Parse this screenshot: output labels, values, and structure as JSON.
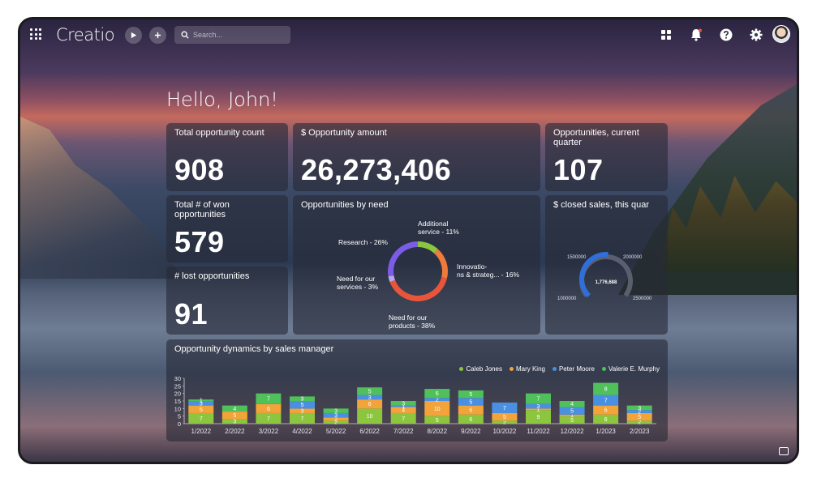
{
  "header": {
    "logo": "Creatio",
    "search_placeholder": "Search...",
    "play_icon": "play-icon",
    "add_icon": "plus-icon"
  },
  "greeting": "Hello, John!",
  "widgets": {
    "total_opportunity_count": {
      "title": "Total opportunity count",
      "value": "908"
    },
    "opportunity_amount": {
      "title": "$ Opportunity amount",
      "value": "26,273,406"
    },
    "opportunities_current_quarter": {
      "title": "Opportunities, current quarter",
      "value": "107"
    },
    "won_opportunities": {
      "title": "Total # of won opportunities",
      "value": "579"
    },
    "lost_opportunities": {
      "title": "# lost opportunities",
      "value": "91"
    },
    "opportunities_by_need": {
      "title": "Opportunities by need"
    },
    "closed_sales": {
      "title": "$ closed sales, this quar"
    },
    "opportunity_dynamics": {
      "title": "Opportunity dynamics by sales manager"
    }
  },
  "colors": {
    "caleb": "#8cc63f",
    "mary": "#f2a33a",
    "peter": "#4a90e2",
    "valerie": "#4fc05a",
    "donut_purple": "#7b5ce6",
    "donut_red": "#e8553a",
    "donut_orange": "#ef7b3a",
    "gauge_blue": "#2f6fdb"
  },
  "chart_data": [
    {
      "type": "pie",
      "title": "Opportunities by need",
      "categories": [
        "Additional service - 11%",
        "Innovations & strateg... - 16%",
        "Need for our products - 38%",
        "Need for our services - 3%",
        "Research - 26%"
      ],
      "label_text": {
        "additional": [
          "Additional",
          "service - 11%"
        ],
        "innovations": [
          "Innova­tio-",
          "ns & strateg... - 16%"
        ],
        "products": [
          "Need for our",
          "products - 38%"
        ],
        "services": [
          "Need for our",
          "services - 3%"
        ],
        "research": [
          "Research - 26%"
        ]
      },
      "values": [
        11,
        16,
        38,
        3,
        26
      ]
    },
    {
      "type": "gauge",
      "title": "$ closed sales, this quar",
      "value": 1776688,
      "value_label": "1,776,688",
      "ticks": [
        "1000000",
        "1500000",
        "2000000",
        "2500000"
      ],
      "range": [
        1000000,
        2500000
      ]
    },
    {
      "type": "bar",
      "stacked": true,
      "title": "Opportunity dynamics by sales manager",
      "categories": [
        "1/2022",
        "2/2022",
        "3/2022",
        "4/2022",
        "5/2022",
        "6/2022",
        "7/2022",
        "8/2022",
        "9/2022",
        "10/2022",
        "11/2022",
        "12/2022",
        "1/2023",
        "2/2023"
      ],
      "ylim": [
        0,
        30
      ],
      "yticks": [
        "0",
        "5",
        "10",
        "15",
        "20",
        "25",
        "30"
      ],
      "series": [
        {
          "name": "Caleb Jones",
          "values": [
            7,
            3,
            7,
            7,
            2,
            10,
            7,
            5,
            6,
            2,
            9,
            5,
            6,
            2
          ]
        },
        {
          "name": "Mary King",
          "values": [
            5,
            5,
            6,
            3,
            2,
            6,
            4,
            10,
            6,
            5,
            1,
            1,
            6,
            5
          ]
        },
        {
          "name": "Peter Moore",
          "values": [
            3,
            0,
            0,
            5,
            3,
            3,
            1,
            2,
            5,
            7,
            3,
            5,
            7,
            2
          ]
        },
        {
          "name": "Valerie E. Murphy",
          "values": [
            1,
            4,
            7,
            3,
            3,
            5,
            3,
            6,
            5,
            0,
            7,
            4,
            8,
            3
          ]
        }
      ]
    }
  ]
}
